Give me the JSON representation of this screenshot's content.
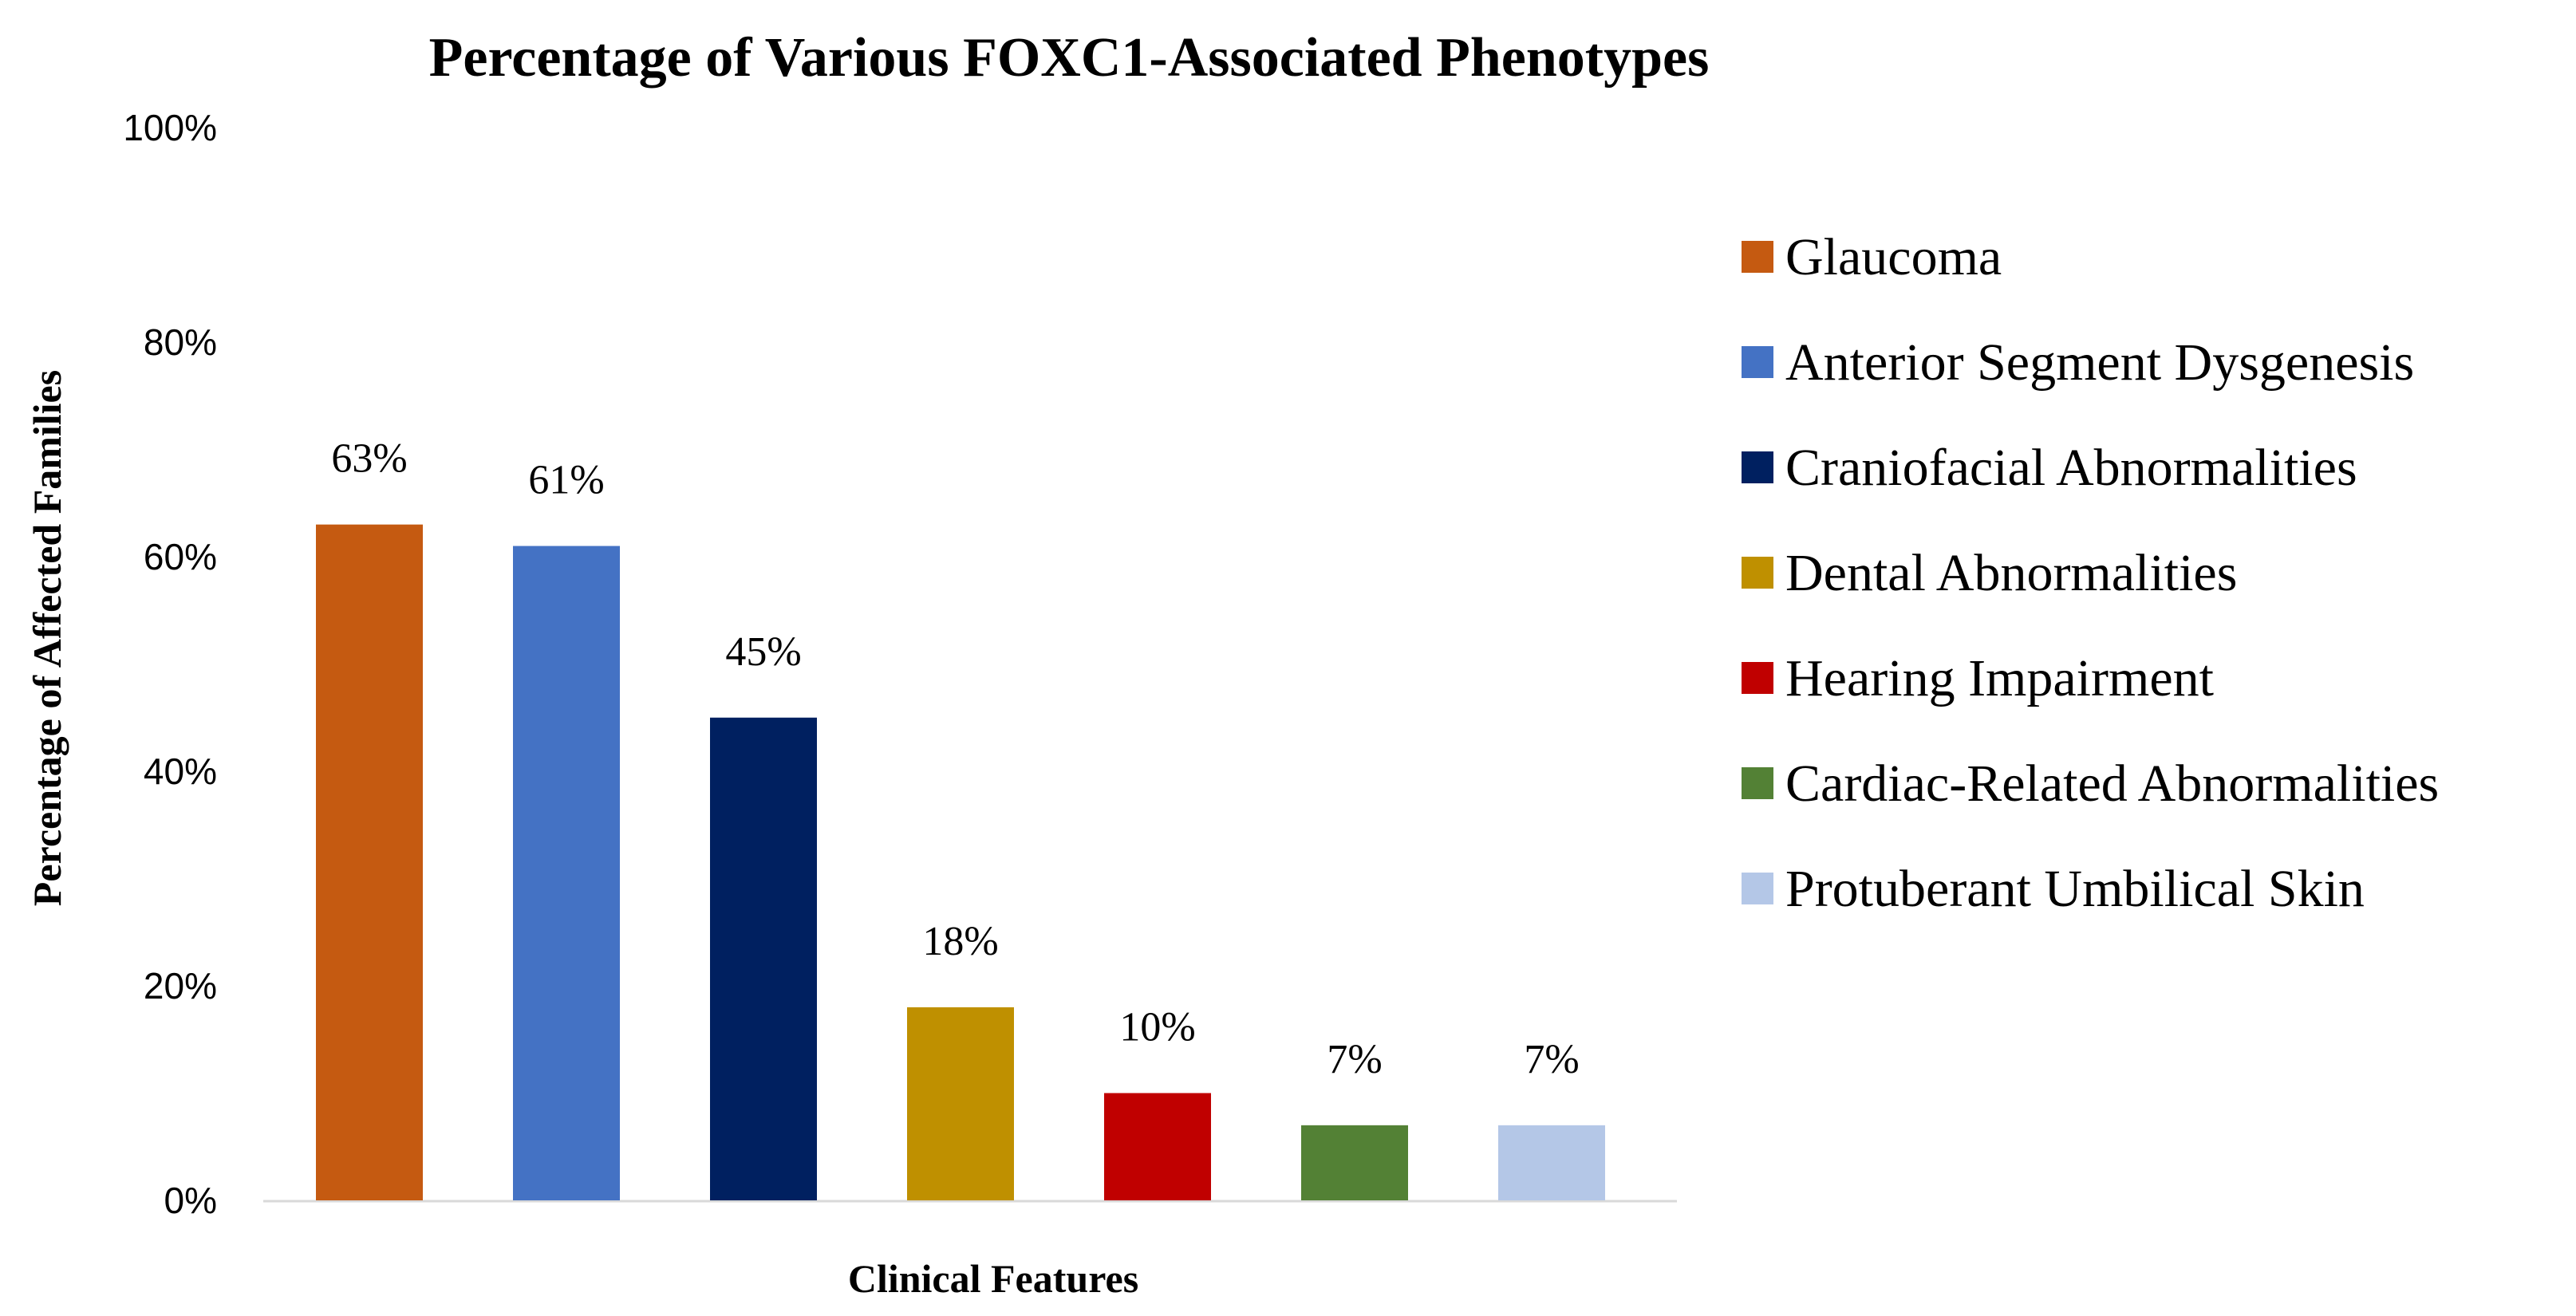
{
  "chart_data": {
    "type": "bar",
    "title": "Percentage of Various FOXC1-Associated Phenotypes",
    "xlabel": "Clinical Features",
    "ylabel": "Percentage of Affected Families",
    "ylim": [
      0,
      100
    ],
    "yticks": [
      0,
      20,
      40,
      60,
      80,
      100
    ],
    "ytick_labels": [
      "0%",
      "20%",
      "40%",
      "60%",
      "80%",
      "100%"
    ],
    "grid": false,
    "legend_position": "right",
    "categories": [
      "Glaucoma",
      "Anterior Segment Dysgenesis",
      "Craniofacial Abnormalities",
      "Dental Abnormalities",
      "Hearing Impairment",
      "Cardiac-Related Abnormalities",
      "Protuberant Umbilical Skin"
    ],
    "values": [
      63,
      61,
      45,
      18,
      10,
      7,
      7
    ],
    "data_labels": [
      "63%",
      "61%",
      "45%",
      "18%",
      "10%",
      "7%",
      "7%"
    ],
    "colors": [
      "#c55a11",
      "#4472c4",
      "#002060",
      "#bf9000",
      "#c00000",
      "#538135",
      "#b4c7e7"
    ]
  }
}
